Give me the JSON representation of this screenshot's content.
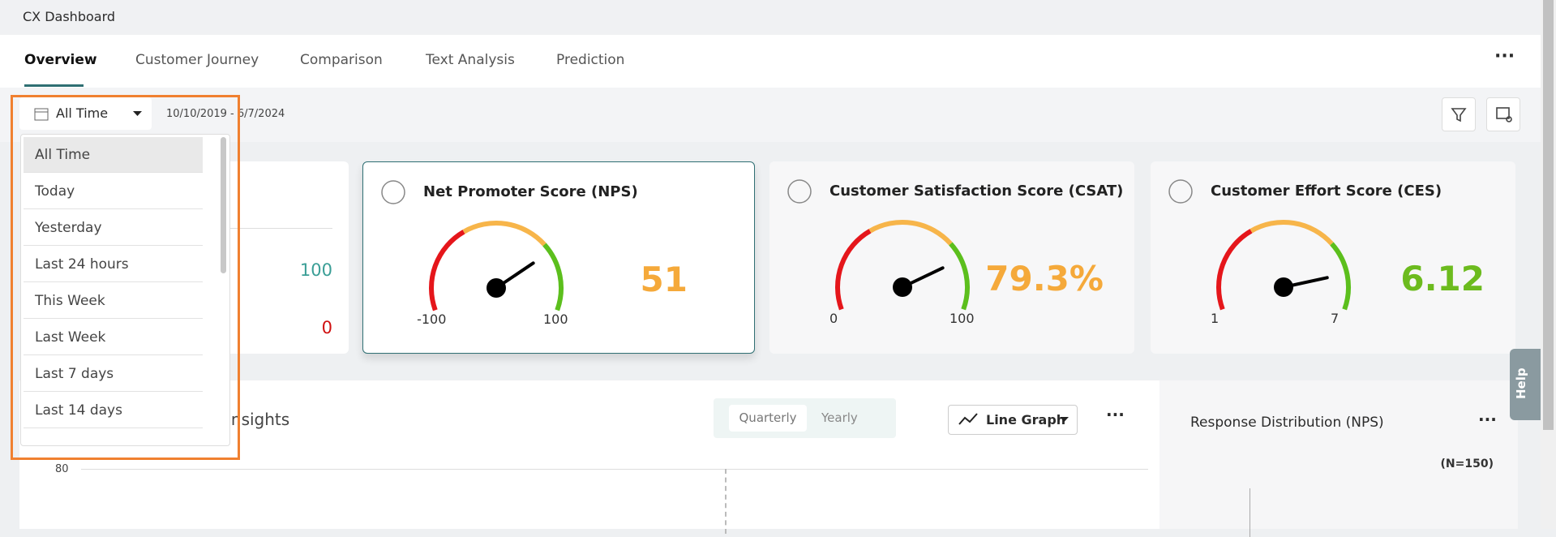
{
  "header": {
    "title": "CX Dashboard"
  },
  "tabs": [
    "Overview",
    "Customer Journey",
    "Comparison",
    "Text Analysis",
    "Prediction"
  ],
  "filter": {
    "selected": "All Time",
    "date_range": "10/10/2019 - 6/7/2024"
  },
  "dropdown": {
    "options": [
      "All Time",
      "Today",
      "Yesterday",
      "Last 24 hours",
      "This Week",
      "Last Week",
      "Last 7 days",
      "Last 14 days"
    ]
  },
  "partial_card": {
    "top_value": "100",
    "bottom_value": "0"
  },
  "gauges": [
    {
      "title": "Net Promoter Score (NPS)",
      "min": -100,
      "max": 100,
      "value": 51
    },
    {
      "title": "Customer Satisfaction Score (CSAT)",
      "min": 0,
      "max": 100,
      "value": 79.3,
      "value_label": "79.3%"
    },
    {
      "title": "Customer Effort Score (CES)",
      "min": 1,
      "max": 7,
      "value": 6.12
    }
  ],
  "trend": {
    "title": "Insights",
    "toggle": [
      "Quarterly",
      "Yearly"
    ],
    "chart_type": "Line Graph",
    "y_tick": "80"
  },
  "distribution": {
    "title": "Response Distribution (NPS)",
    "n_label": "(N=150)"
  },
  "help": "Help"
}
